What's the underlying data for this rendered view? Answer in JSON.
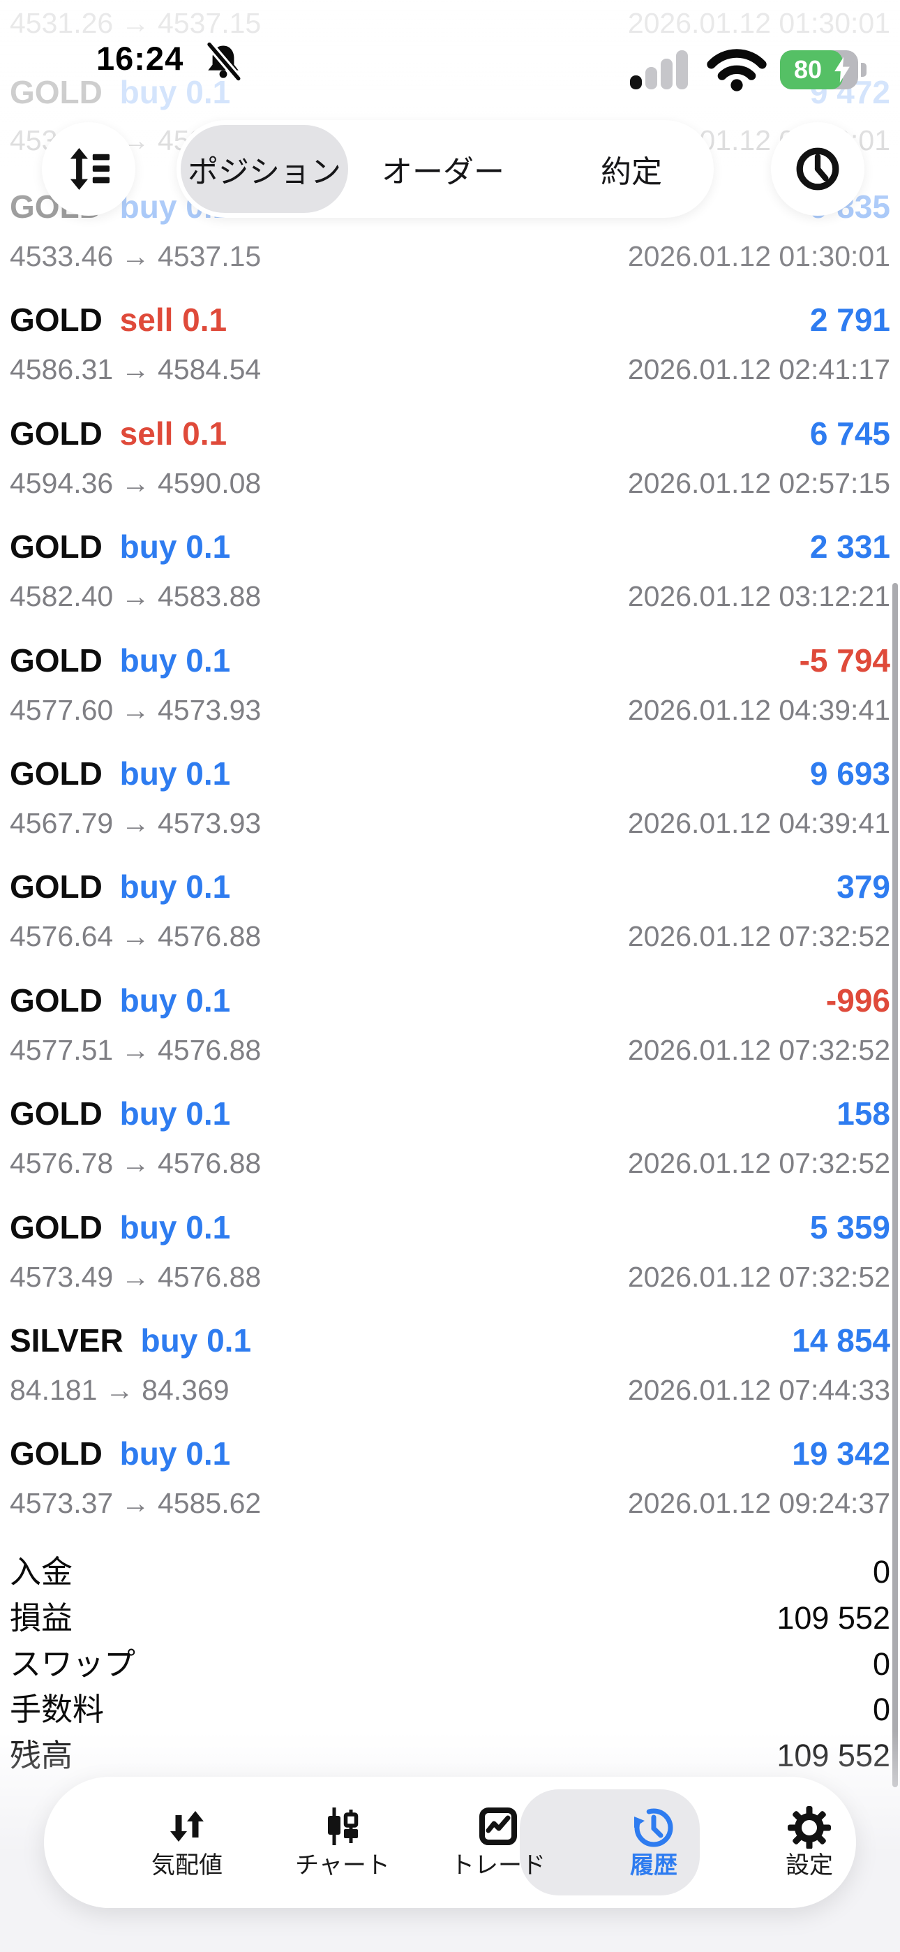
{
  "status_bar": {
    "time": "16:24",
    "battery_percent": "80",
    "signal_bars_filled": 1,
    "signal_bars_total": 4
  },
  "header": {
    "tabs": [
      {
        "label": "ポジション",
        "selected": true
      },
      {
        "label": "オーダー",
        "selected": false
      },
      {
        "label": "約定",
        "selected": false
      }
    ]
  },
  "ghost": {
    "price_top": "4531.26 → 4537.15",
    "date_top": "2026.01.12 01:30:01",
    "symbol": "GOLD",
    "side": "buy 0.1",
    "profit": "9 472",
    "price_mid": "4533.46 → 4537.15",
    "date_mid": "2026.01.12 01:30:01"
  },
  "rows": [
    {
      "symbol": "GOLD",
      "side": "buy 0.1",
      "dir": "buy",
      "profit": "9 835",
      "price": "4533.46 → 4537.15",
      "datetime": "2026.01.12 01:30:01",
      "fade_line1": 0.45,
      "fade_line2": 0.95
    },
    {
      "symbol": "GOLD",
      "side": "sell 0.1",
      "dir": "sell",
      "profit": "2 791",
      "price": "4586.31 → 4584.54",
      "datetime": "2026.01.12 02:41:17"
    },
    {
      "symbol": "GOLD",
      "side": "sell 0.1",
      "dir": "sell",
      "profit": "6 745",
      "price": "4594.36 → 4590.08",
      "datetime": "2026.01.12 02:57:15"
    },
    {
      "symbol": "GOLD",
      "side": "buy 0.1",
      "dir": "buy",
      "profit": "2 331",
      "price": "4582.40 → 4583.88",
      "datetime": "2026.01.12 03:12:21"
    },
    {
      "symbol": "GOLD",
      "side": "buy 0.1",
      "dir": "buy",
      "profit": "-5 794",
      "price": "4577.60 → 4573.93",
      "datetime": "2026.01.12 04:39:41"
    },
    {
      "symbol": "GOLD",
      "side": "buy 0.1",
      "dir": "buy",
      "profit": "9 693",
      "price": "4567.79 → 4573.93",
      "datetime": "2026.01.12 04:39:41"
    },
    {
      "symbol": "GOLD",
      "side": "buy 0.1",
      "dir": "buy",
      "profit": "379",
      "price": "4576.64 → 4576.88",
      "datetime": "2026.01.12 07:32:52"
    },
    {
      "symbol": "GOLD",
      "side": "buy 0.1",
      "dir": "buy",
      "profit": "-996",
      "price": "4577.51 → 4576.88",
      "datetime": "2026.01.12 07:32:52"
    },
    {
      "symbol": "GOLD",
      "side": "buy 0.1",
      "dir": "buy",
      "profit": "158",
      "price": "4576.78 → 4576.88",
      "datetime": "2026.01.12 07:32:52"
    },
    {
      "symbol": "GOLD",
      "side": "buy 0.1",
      "dir": "buy",
      "profit": "5 359",
      "price": "4573.49 → 4576.88",
      "datetime": "2026.01.12 07:32:52"
    },
    {
      "symbol": "SILVER",
      "side": "buy 0.1",
      "dir": "buy",
      "profit": "14 854",
      "price": "84.181 → 84.369",
      "datetime": "2026.01.12 07:44:33"
    },
    {
      "symbol": "GOLD",
      "side": "buy 0.1",
      "dir": "buy",
      "profit": "19 342",
      "price": "4573.37 → 4585.62",
      "datetime": "2026.01.12 09:24:37"
    }
  ],
  "summary": {
    "rows": [
      {
        "label": "入金",
        "value": "0"
      },
      {
        "label": "損益",
        "value": "109 552"
      },
      {
        "label": "スワップ",
        "value": "0"
      },
      {
        "label": "手数料",
        "value": "0"
      },
      {
        "label": "残高",
        "value": "109 552"
      }
    ]
  },
  "nav": {
    "items": [
      {
        "label": "気配値",
        "icon": "arrows-up-down-icon",
        "selected": false
      },
      {
        "label": "チャート",
        "icon": "candlestick-icon",
        "selected": false
      },
      {
        "label": "トレード",
        "icon": "trade-card-icon",
        "selected": false
      },
      {
        "label": "履歴",
        "icon": "history-clock-icon",
        "selected": true
      },
      {
        "label": "設定",
        "icon": "gear-icon",
        "selected": false
      }
    ]
  },
  "colors": {
    "buy_blue": "#2e7cf0",
    "sell_red": "#df4a3a",
    "battery_green": "#55c065",
    "price_gray": "#7f7f84"
  }
}
